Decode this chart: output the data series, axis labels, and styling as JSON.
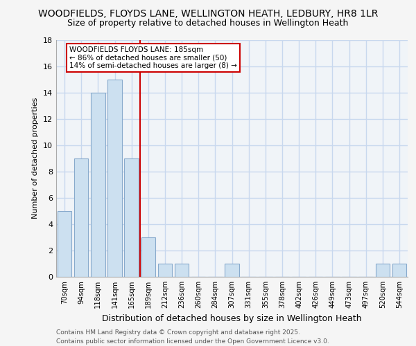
{
  "title1": "WOODFIELDS, FLOYDS LANE, WELLINGTON HEATH, LEDBURY, HR8 1LR",
  "title2": "Size of property relative to detached houses in Wellington Heath",
  "xlabel": "Distribution of detached houses by size in Wellington Heath",
  "ylabel": "Number of detached properties",
  "categories": [
    "70sqm",
    "94sqm",
    "118sqm",
    "141sqm",
    "165sqm",
    "189sqm",
    "212sqm",
    "236sqm",
    "260sqm",
    "284sqm",
    "307sqm",
    "331sqm",
    "355sqm",
    "378sqm",
    "402sqm",
    "426sqm",
    "449sqm",
    "473sqm",
    "497sqm",
    "520sqm",
    "544sqm"
  ],
  "values": [
    5,
    9,
    14,
    15,
    9,
    3,
    1,
    1,
    0,
    0,
    1,
    0,
    0,
    0,
    0,
    0,
    0,
    0,
    0,
    1,
    1
  ],
  "bar_color": "#cce0f0",
  "bar_edgecolor": "#88aacc",
  "vline_x": 4.5,
  "vline_color": "#cc0000",
  "annotation_title": "WOODFIELDS FLOYDS LANE: 185sqm",
  "annotation_line1": "← 86% of detached houses are smaller (50)",
  "annotation_line2": "14% of semi-detached houses are larger (8) →",
  "annotation_box_edgecolor": "#cc0000",
  "ylim": [
    0,
    18
  ],
  "yticks": [
    0,
    2,
    4,
    6,
    8,
    10,
    12,
    14,
    16,
    18
  ],
  "footer1": "Contains HM Land Registry data © Crown copyright and database right 2025.",
  "footer2": "Contains public sector information licensed under the Open Government Licence v3.0.",
  "background_color": "#f5f5f5",
  "plot_background": "#f0f4f8",
  "grid_color": "#c8d8ee",
  "title1_fontsize": 10,
  "title2_fontsize": 9
}
